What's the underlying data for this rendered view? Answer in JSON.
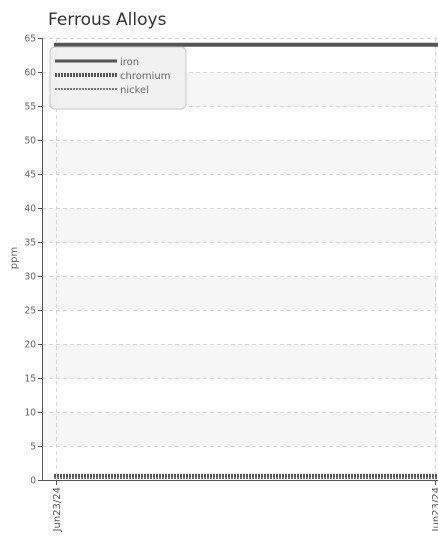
{
  "chart_data": {
    "type": "line",
    "title": "Ferrous Alloys",
    "ylabel": "ppm",
    "xlabel": "",
    "x": [
      "Jun23/24",
      "Jun23/24"
    ],
    "ylim": [
      0,
      65
    ],
    "yticks": [
      0,
      5,
      10,
      15,
      20,
      25,
      30,
      35,
      40,
      45,
      50,
      55,
      60,
      65
    ],
    "grid": true,
    "legend_position": "top-left",
    "series": [
      {
        "name": "iron",
        "values": [
          64,
          64
        ],
        "color": "#555555",
        "style": "solid"
      },
      {
        "name": "chromium",
        "values": [
          0.6,
          0.6
        ],
        "color": "#555555",
        "style": "dotted"
      },
      {
        "name": "nickel",
        "values": [
          0.3,
          0.3
        ],
        "color": "#777777",
        "style": "dotted"
      }
    ]
  }
}
